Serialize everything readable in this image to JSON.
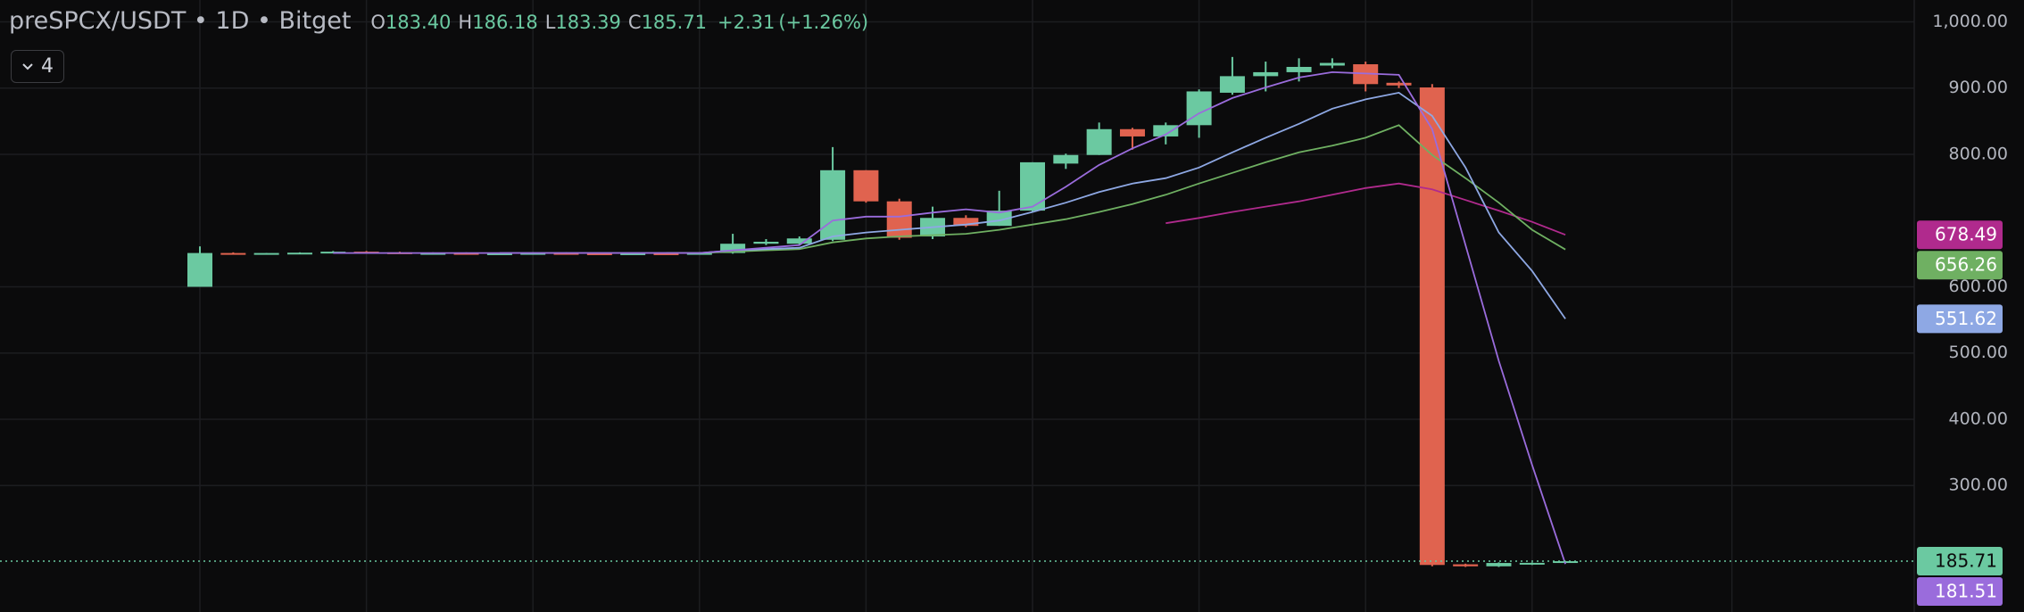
{
  "chart_data": {
    "type": "candlestick",
    "title": "preSPCX/USDT • 1D • Bitget",
    "ohlc_legend": [
      {
        "key": "O",
        "value": 183.4,
        "label": "183.40"
      },
      {
        "key": "H",
        "value": 186.18,
        "label": "186.18"
      },
      {
        "key": "L",
        "value": 183.39,
        "label": "183.39"
      },
      {
        "key": "C",
        "value": 185.71,
        "label": "185.71"
      }
    ],
    "change": {
      "value": 2.31,
      "label": "+2.31"
    },
    "change_pct": {
      "value": 1.26,
      "label": "(+1.26%)"
    },
    "indicator_count": 4,
    "up_color": "#6bc9a1",
    "down_color": "#e0634f",
    "open": [
      600,
      651,
      650,
      651,
      652,
      653,
      652,
      651,
      651,
      650,
      650.5,
      651,
      650.5,
      650,
      650.5,
      650,
      651,
      665,
      665,
      671,
      776,
      729,
      676,
      704,
      692,
      715,
      786,
      799,
      838,
      827,
      844,
      893,
      918,
      924,
      934,
      936,
      908,
      901,
      181,
      178,
      181,
      183.4
    ],
    "high": [
      661,
      652,
      651,
      652,
      654,
      654,
      653,
      652,
      652,
      651,
      652,
      652,
      651,
      651,
      651,
      652,
      680,
      672,
      676,
      811,
      776,
      733,
      721,
      708,
      745,
      788,
      801,
      848,
      840,
      848,
      898,
      947,
      940,
      945,
      945,
      940,
      910,
      906,
      182,
      184,
      184,
      186.18
    ],
    "low": [
      600,
      650,
      649,
      650,
      651,
      651,
      650,
      650,
      649,
      649,
      649,
      650,
      649,
      649,
      649,
      649,
      650,
      663,
      664,
      669,
      727,
      671,
      672,
      690,
      692,
      713,
      778,
      799,
      807,
      815,
      825,
      890,
      895,
      910,
      930,
      895,
      900,
      178,
      177,
      177,
      180,
      183.39
    ],
    "close": [
      651,
      650,
      651,
      651.5,
      653,
      652,
      651,
      651,
      650,
      650.5,
      651,
      650.5,
      650,
      650.5,
      650,
      651,
      665,
      668,
      673,
      776,
      729,
      674,
      704,
      692,
      715,
      788,
      799,
      838,
      827,
      844,
      895,
      918,
      924,
      932,
      938,
      906,
      904,
      180,
      178,
      183,
      183.2,
      185.71
    ],
    "series": [
      {
        "color": "#b02a8d",
        "values": [
          null,
          null,
          null,
          null,
          null,
          null,
          null,
          null,
          null,
          null,
          null,
          null,
          null,
          null,
          null,
          null,
          null,
          null,
          null,
          null,
          null,
          null,
          null,
          null,
          null,
          null,
          null,
          null,
          null,
          696,
          704,
          713,
          721,
          729,
          739,
          749,
          756,
          747,
          731,
          715,
          698,
          678.49
        ]
      },
      {
        "color": "#6fb062",
        "values": [
          null,
          null,
          null,
          null,
          null,
          null,
          null,
          null,
          null,
          null,
          null,
          null,
          null,
          null,
          651,
          651,
          653,
          655,
          657,
          667,
          673,
          676,
          678,
          680,
          686,
          694,
          702,
          713,
          725,
          739,
          756,
          772,
          788,
          803,
          813,
          825,
          844,
          799,
          764,
          727,
          686,
          656.26
        ]
      },
      {
        "color": "#8ea8e4",
        "values": [
          null,
          null,
          null,
          null,
          null,
          null,
          null,
          null,
          null,
          651,
          651,
          651,
          651,
          651,
          651,
          651,
          655,
          657,
          659,
          676,
          682,
          686,
          690,
          694,
          700,
          713,
          727,
          743,
          756,
          764,
          780,
          803,
          825,
          846,
          869,
          883,
          893,
          858,
          780,
          682,
          624,
          551.62
        ]
      },
      {
        "color": "#9a6cdc",
        "values": [
          null,
          null,
          null,
          null,
          651,
          651,
          651,
          651,
          651,
          651,
          651,
          651,
          651,
          651,
          651,
          651,
          655,
          659,
          663,
          700,
          706,
          706,
          712,
          717,
          712,
          721,
          751,
          784,
          809,
          830,
          862,
          885,
          901,
          916,
          924,
          922,
          920,
          838,
          663,
          488,
          331,
          181.51
        ]
      }
    ],
    "ylim": [
      109,
      1033
    ],
    "yticks": [
      {
        "value": 1000,
        "label": "1,000.00"
      },
      {
        "value": 900,
        "label": "900.00"
      },
      {
        "value": 800,
        "label": "800.00"
      },
      {
        "value": 600,
        "label": "600.00"
      },
      {
        "value": 500,
        "label": "500.00"
      },
      {
        "value": 400,
        "label": "400.00"
      },
      {
        "value": 300,
        "label": "300.00"
      }
    ],
    "grid": true
  }
}
